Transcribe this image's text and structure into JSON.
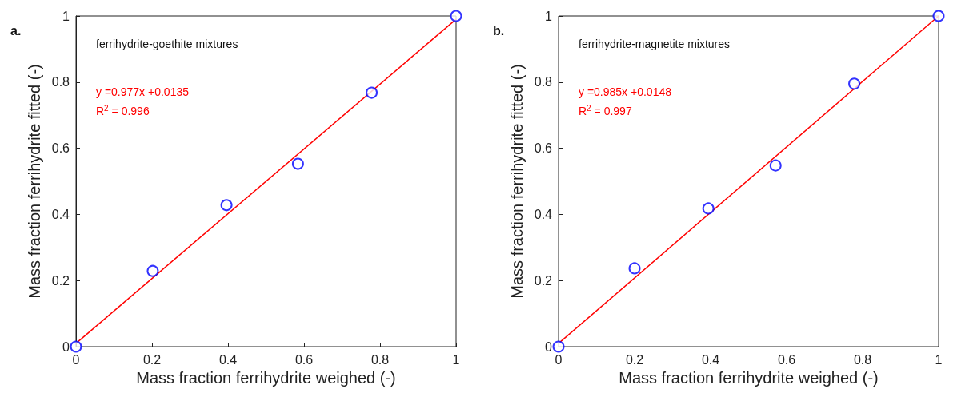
{
  "chart_data": [
    {
      "type": "scatter",
      "xlabel": "Mass fraction ferrihydrite weighed (-)",
      "ylabel": "Mass fraction ferrihydrite fitted (-)",
      "xlim": [
        0,
        1
      ],
      "ylim": [
        0,
        1
      ],
      "xticks": [
        0,
        0.2,
        0.4,
        0.6,
        0.8,
        1
      ],
      "yticks": [
        0,
        0.2,
        0.4,
        0.6,
        0.8,
        1
      ],
      "annotations": [
        "a.",
        "ferrihydrite-goethite mixtures",
        "y =0.977x +0.0135",
        "R$^{2}$ = 0.996"
      ],
      "series": [
        {
          "color": "#0000ff",
          "marker": "circle",
          "x": [
            0,
            0.202,
            0.396,
            0.584,
            0.778,
            1
          ],
          "values": [
            0,
            0.229,
            0.428,
            0.553,
            0.768,
            1
          ]
        },
        {
          "type": "line",
          "marker": "none",
          "color": "#ff0000",
          "x": [
            0,
            1
          ],
          "values": [
            0.01,
            0.99
          ]
        }
      ]
    },
    {
      "type": "scatter",
      "xlabel": "Mass fraction ferrihydrite weighed (-)",
      "ylabel": "Mass fraction ferrihydrite fitted (-)",
      "xlim": [
        0,
        1
      ],
      "ylim": [
        0,
        1
      ],
      "xticks": [
        0,
        0.2,
        0.4,
        0.6,
        0.8,
        1
      ],
      "yticks": [
        0,
        0.2,
        0.4,
        0.6,
        0.8,
        1
      ],
      "annotations": [
        "b.",
        "ferrihydrite-magnetite mixtures",
        "y =0.985x +0.0148",
        "R$^{2}$ = 0.997"
      ],
      "series": [
        {
          "color": "#0000ff",
          "marker": "circle",
          "x": [
            0,
            0.2,
            0.394,
            0.571,
            0.778,
            1
          ],
          "values": [
            0,
            0.237,
            0.418,
            0.548,
            0.795,
            1
          ]
        },
        {
          "type": "line",
          "marker": "none",
          "color": "#ff0000",
          "x": [
            0,
            1
          ],
          "values": [
            0.01,
            1
          ]
        }
      ]
    }
  ]
}
